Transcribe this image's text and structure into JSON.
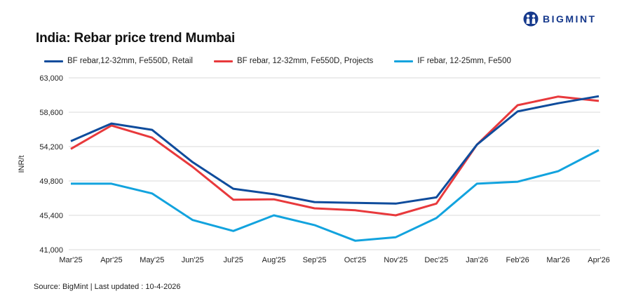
{
  "chart_data": {
    "type": "line",
    "title": "India: Rebar price trend Mumbai",
    "xlabel": "",
    "ylabel": "INR/t",
    "ylim": [
      41000,
      63000
    ],
    "yticks": [
      41000,
      45400,
      49800,
      54200,
      58600,
      63000
    ],
    "ytick_labels": [
      "41,000",
      "45,400",
      "49,800",
      "54,200",
      "58,600",
      "63,000"
    ],
    "grid": true,
    "legend_position": "top",
    "categories": [
      "Mar'25",
      "Apr'25",
      "May'25",
      "Jun'25",
      "Jul'25",
      "Aug'25",
      "Sep'25",
      "Oct'25",
      "Nov'25",
      "Dec'25",
      "Jan'26",
      "Feb'26",
      "Mar'26",
      "Apr'26"
    ],
    "series": [
      {
        "name": "BF rebar,12-32mm, Fe550D, Retail",
        "color": "#0f4c9c",
        "values": [
          54900,
          57150,
          56350,
          52200,
          48800,
          48100,
          47100,
          47000,
          46900,
          47700,
          54450,
          58700,
          59750,
          60650
        ]
      },
      {
        "name": "BF rebar, 12-32mm, Fe550D, Projects",
        "color": "#e8393c",
        "values": [
          53900,
          56900,
          55350,
          51600,
          47400,
          47450,
          46300,
          46050,
          45400,
          46900,
          54450,
          59500,
          60600,
          60050
        ]
      },
      {
        "name": "IF rebar, 12-25mm, Fe500",
        "color": "#12a3de",
        "values": [
          49450,
          49450,
          48200,
          44800,
          43400,
          45400,
          44150,
          42150,
          42600,
          45050,
          49450,
          49700,
          51050,
          53750
        ]
      }
    ]
  },
  "header": {
    "title": "India: Rebar price trend Mumbai",
    "logo_text": "BIGMINT",
    "logo_icon": "bigmint-people-icon",
    "brand_color": "#16398c"
  },
  "footer": {
    "source": "Source: BigMint | Last updated : 10-4-2026"
  }
}
